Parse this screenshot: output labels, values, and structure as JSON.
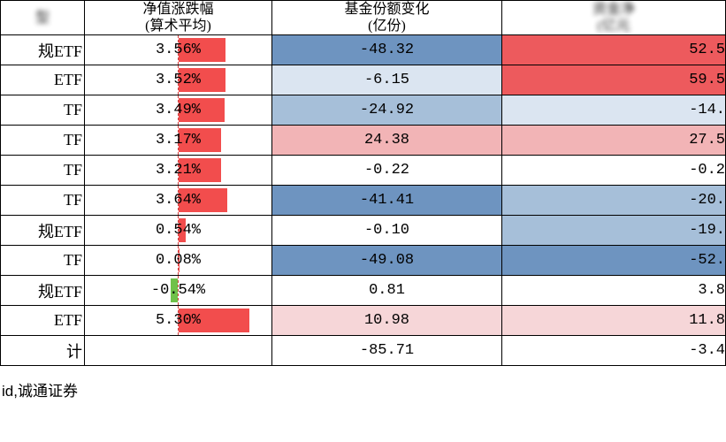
{
  "header": {
    "col1_line1": "型",
    "col2_line1": "净值涨跌幅",
    "col2_line2": "(算术平均)",
    "col3_line1": "基金份额变化",
    "col3_line2": "(亿份)",
    "col4_line1": "资金净",
    "col4_line2": "(亿元"
  },
  "colors": {
    "red_bar": "#f24d4d",
    "green_bar": "#6fc14a",
    "blue_dark": "#6e94c0",
    "blue_mid": "#a6bfd9",
    "blue_light": "#dbe5f1",
    "pink_light": "#f6d6d8",
    "pink_mid": "#f2b4b6",
    "red_bg": "#ed5a5d",
    "red_bg2": "#ee6e70",
    "white": "#ffffff"
  },
  "pct_scale": 15,
  "rows": [
    {
      "type": "ETF",
      "type_prefix": "规",
      "pct": 3.56,
      "pct_label": "3.56%",
      "share": "-48.32",
      "share_bg": "blue_dark",
      "net": "52.5",
      "net_bg": "red_bg"
    },
    {
      "type": "ETF",
      "type_prefix": "",
      "pct": 3.52,
      "pct_label": "3.52%",
      "share": "-6.15",
      "share_bg": "blue_light",
      "net": "59.5",
      "net_bg": "red_bg"
    },
    {
      "type": "TF",
      "type_prefix": "",
      "pct": 3.49,
      "pct_label": "3.49%",
      "share": "-24.92",
      "share_bg": "blue_mid",
      "net": "-14.",
      "net_bg": "blue_light"
    },
    {
      "type": "TF",
      "type_prefix": "",
      "pct": 3.17,
      "pct_label": "3.17%",
      "share": "24.38",
      "share_bg": "pink_mid",
      "net": "27.5",
      "net_bg": "pink_mid"
    },
    {
      "type": "TF",
      "type_prefix": "",
      "pct": 3.21,
      "pct_label": "3.21%",
      "share": "-0.22",
      "share_bg": "white",
      "net": "-0.2",
      "net_bg": "white"
    },
    {
      "type": "TF",
      "type_prefix": "",
      "pct": 3.64,
      "pct_label": "3.64%",
      "share": "-41.41",
      "share_bg": "blue_dark",
      "net": "-20.",
      "net_bg": "blue_mid"
    },
    {
      "type": "ETF",
      "type_prefix": "规",
      "pct": 0.54,
      "pct_label": "0.54%",
      "share": "-0.10",
      "share_bg": "white",
      "net": "-19.",
      "net_bg": "blue_mid"
    },
    {
      "type": "TF",
      "type_prefix": "",
      "pct": 0.08,
      "pct_label": "0.08%",
      "share": "-49.08",
      "share_bg": "blue_dark",
      "net": "-52.",
      "net_bg": "blue_dark"
    },
    {
      "type": "ETF",
      "type_prefix": "规",
      "pct": -0.54,
      "pct_label": "-0.54%",
      "share": "0.81",
      "share_bg": "white",
      "net": "3.8",
      "net_bg": "white"
    },
    {
      "type": "ETF",
      "type_prefix": "",
      "pct": 5.3,
      "pct_label": "5.30%",
      "share": "10.98",
      "share_bg": "pink_light",
      "net": "11.8",
      "net_bg": "pink_light"
    },
    {
      "type": "计",
      "type_prefix": "",
      "pct": null,
      "pct_label": "",
      "share": "-85.71",
      "share_bg": "white",
      "net": "-3.4",
      "net_bg": "white"
    }
  ],
  "footer": "id,诚通证券"
}
